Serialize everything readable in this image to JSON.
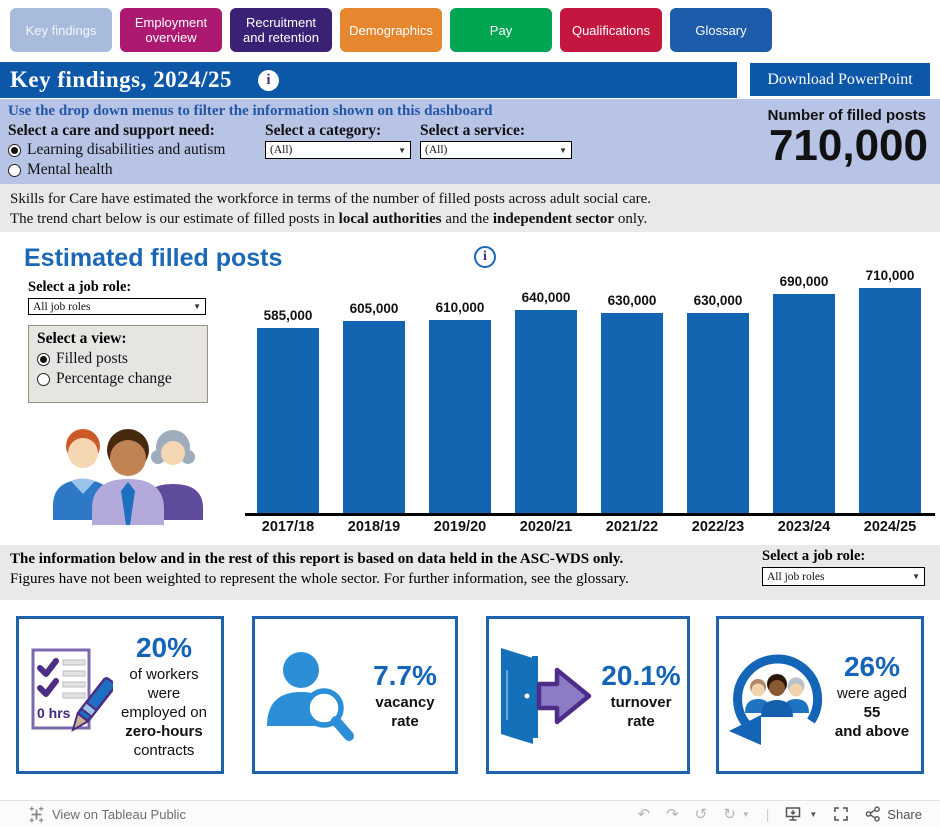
{
  "tabs": [
    {
      "label": "Key findings",
      "color": "#a9bbdd",
      "active": true
    },
    {
      "label": "Employment overview",
      "color": "#ab1a70",
      "active": false
    },
    {
      "label": "Recruitment and retention",
      "color": "#3b2175",
      "active": false
    },
    {
      "label": "Demographics",
      "color": "#e6862f",
      "active": false
    },
    {
      "label": "Pay",
      "color": "#00a551",
      "active": false
    },
    {
      "label": "Qualifications",
      "color": "#c41740",
      "active": false
    },
    {
      "label": "Glossary",
      "color": "#1d5cab",
      "active": false
    }
  ],
  "header": {
    "title": "Key findings, 2024/25",
    "download_label": "Download PowerPoint"
  },
  "filters": {
    "instruction": "Use the drop down menus to filter the information shown on this dashboard",
    "care_need": {
      "label": "Select a care and support need:",
      "options": [
        {
          "label": "Learning disabilities and autism",
          "selected": true
        },
        {
          "label": "Mental health",
          "selected": false
        }
      ]
    },
    "category": {
      "label": "Select a category:",
      "value": "(All)"
    },
    "service": {
      "label": "Select a service:",
      "value": "(All)"
    }
  },
  "kpi": {
    "label": "Number of filled posts",
    "value": "710,000"
  },
  "intro": {
    "line1": "Skills for Care have estimated the workforce in terms of the number of filled posts across adult social care.",
    "line2_prefix": "The trend chart below is our estimate of filled posts in ",
    "line2_bold1": "local authorities",
    "line2_mid": " and the ",
    "line2_bold2": "independent sector",
    "line2_suffix": " only."
  },
  "chart_section": {
    "title": "Estimated filled posts",
    "job_role": {
      "label": "Select a job role:",
      "value": "All job roles"
    },
    "view": {
      "label": "Select a view:",
      "options": [
        {
          "label": "Filled posts",
          "selected": true
        },
        {
          "label": "Percentage change",
          "selected": false
        }
      ]
    }
  },
  "chart_data": {
    "type": "bar",
    "title": "Estimated filled posts",
    "categories": [
      "2017/18",
      "2018/19",
      "2019/20",
      "2020/21",
      "2021/22",
      "2022/23",
      "2023/24",
      "2024/25"
    ],
    "values": [
      585000,
      605000,
      610000,
      640000,
      630000,
      630000,
      690000,
      710000
    ],
    "value_labels": [
      "585,000",
      "605,000",
      "610,000",
      "640,000",
      "630,000",
      "630,000",
      "690,000",
      "710,000"
    ],
    "ymax": 710000,
    "ylim": [
      0,
      710000
    ],
    "bar_color": "#1263b0",
    "xlabel": "",
    "ylabel": "",
    "grid": false,
    "legend": false
  },
  "ascwds": {
    "line1": "The information below and in the rest of this report is based on data held in the ASC-WDS only.",
    "line2": "Figures have not been weighted to represent the whole sector. For further information, see the glossary.",
    "job_role": {
      "label": "Select a job role:",
      "value": "All job roles"
    }
  },
  "cards": [
    {
      "value": "20%",
      "l1": "of workers were",
      "l2": "employed on",
      "l3": "zero-hours",
      "l4": "contracts",
      "icon_text": "0 hrs"
    },
    {
      "value": "7.7%",
      "label": "vacancy rate"
    },
    {
      "value": "20.1%",
      "label": "turnover rate"
    },
    {
      "value": "26%",
      "l1_prefix": "were aged ",
      "l1_bold": "55",
      "l2_bold": "and above"
    }
  ],
  "footer": {
    "view_on": "View on Tableau Public",
    "share": "Share"
  }
}
